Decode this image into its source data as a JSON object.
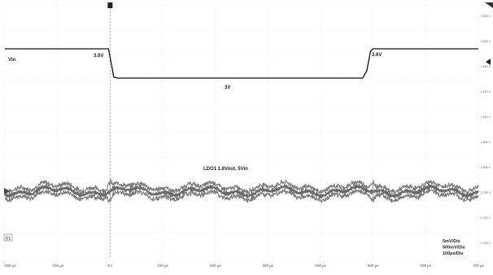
{
  "chart_data": {
    "type": "line",
    "title": "",
    "x_unit": "µs",
    "xlim": [
      -200,
      700
    ],
    "x_ticks": [
      {
        "value": -200,
        "label": "-200 µs"
      },
      {
        "value": -100,
        "label": "-100 µs"
      },
      {
        "value": 0,
        "label": "0 s"
      },
      {
        "value": 100,
        "label": "100 µs"
      },
      {
        "value": 200,
        "label": "200 µs"
      },
      {
        "value": 300,
        "label": "300 µs"
      },
      {
        "value": 400,
        "label": "400 µs"
      },
      {
        "value": 500,
        "label": "500 µs"
      },
      {
        "value": 600,
        "label": "600 µs"
      },
      {
        "value": 700,
        "label": "700 µs"
      }
    ],
    "y_ticks": [
      "1.830 V",
      "1.825 V",
      "1.820 V",
      "1.815 V",
      "1.810 V",
      "1.805 V",
      "1.800 V",
      "1.795 V",
      "1.790 V",
      "1.785 V"
    ],
    "grid": true,
    "trigger_time": 0,
    "series": [
      {
        "name": "Vin",
        "color": "#111111",
        "points": [
          [
            -200,
            3.6
          ],
          [
            -3,
            3.6
          ],
          [
            7,
            3.02
          ],
          [
            15,
            3.0
          ],
          [
            480,
            3.0
          ],
          [
            488,
            3.15
          ],
          [
            495,
            3.55
          ],
          [
            500,
            3.6
          ],
          [
            700,
            3.6
          ]
        ]
      },
      {
        "name": "LDO1 1.8Vout, 5Vin",
        "color": "#7a7a7a",
        "nominal_v": 1.8,
        "noise_p2p_mv": 5,
        "transient_at": [
          0,
          500
        ]
      }
    ],
    "annotations": {
      "vin_label": "Vin",
      "v_high_left": "3.6V",
      "v_low": "3V",
      "v_high_right": "3.6V",
      "ldo_label": "LDO1 1.8Vout, 5Vin",
      "channel_marker": "C1"
    },
    "scale_info": [
      "5mV/Div",
      "500mV/Div",
      "100µs/Div"
    ]
  }
}
